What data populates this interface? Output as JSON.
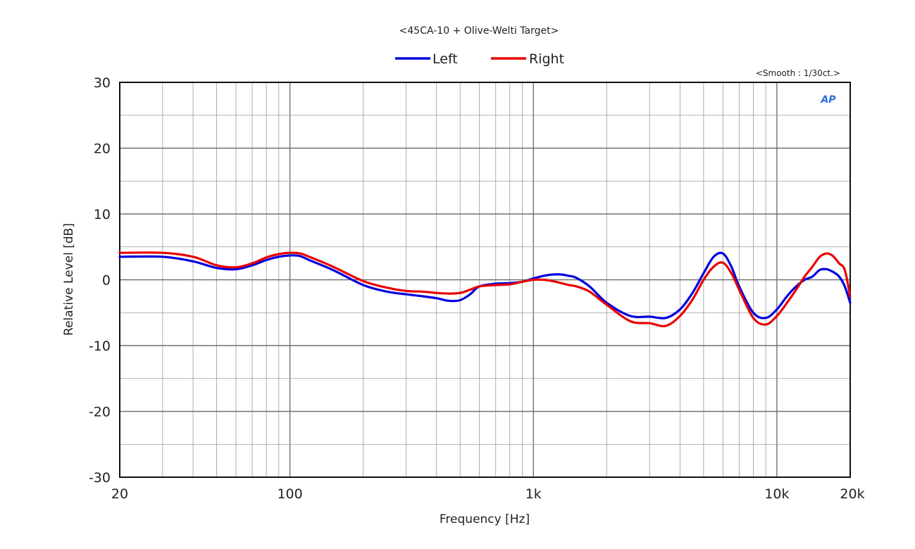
{
  "colors": {
    "left": "#0000e0",
    "right": "#e80000",
    "grid": "#9a9a9a",
    "major_grid": "#707070",
    "logo": "#2b6fd6"
  },
  "chart_data": {
    "type": "line",
    "title": "<45CA-10 + Olive-Welti Target>",
    "xlabel": "Frequency [Hz]",
    "ylabel": "Relative Level [dB]",
    "x_scale": "log",
    "xlim": [
      20,
      20000
    ],
    "ylim": [
      -30,
      30
    ],
    "x_ticks": [
      {
        "value": 20,
        "label": "20"
      },
      {
        "value": 100,
        "label": "100"
      },
      {
        "value": 1000,
        "label": "1k"
      },
      {
        "value": 10000,
        "label": "10k"
      },
      {
        "value": 20000,
        "label": "20k"
      }
    ],
    "y_ticks": [
      {
        "value": 30,
        "label": "30"
      },
      {
        "value": 20,
        "label": "20"
      },
      {
        "value": 10,
        "label": "10"
      },
      {
        "value": 0,
        "label": "0"
      },
      {
        "value": -10,
        "label": "-10"
      },
      {
        "value": -20,
        "label": "-20"
      },
      {
        "value": -30,
        "label": "-30"
      }
    ],
    "grid": true,
    "legend_position": "top-center",
    "annotation": "<Smooth : 1/30ct.>",
    "logo_text": "AP",
    "series": [
      {
        "name": "Left",
        "color": "#0000e0",
        "x": [
          20,
          30,
          40,
          50,
          60,
          70,
          80,
          90,
          100,
          110,
          120,
          150,
          200,
          250,
          300,
          350,
          400,
          450,
          500,
          550,
          600,
          700,
          800,
          900,
          1000,
          1100,
          1200,
          1300,
          1400,
          1500,
          1700,
          2000,
          2500,
          3000,
          3500,
          4000,
          4500,
          5000,
          5500,
          6000,
          6500,
          7000,
          8000,
          9000,
          10000,
          11000,
          12000,
          13000,
          14000,
          15000,
          16000,
          17000,
          18000,
          19000,
          20000
        ],
        "y": [
          3.5,
          3.5,
          2.8,
          1.8,
          1.6,
          2.2,
          3.0,
          3.5,
          3.7,
          3.6,
          3.0,
          1.5,
          -0.8,
          -1.8,
          -2.2,
          -2.5,
          -2.8,
          -3.2,
          -3.1,
          -2.2,
          -1.0,
          -0.6,
          -0.5,
          -0.3,
          0.2,
          0.6,
          0.8,
          0.8,
          0.6,
          0.3,
          -1.0,
          -3.5,
          -5.5,
          -5.6,
          -5.8,
          -4.5,
          -2.0,
          1.0,
          3.5,
          4.0,
          2.0,
          -1.0,
          -5.0,
          -5.8,
          -4.5,
          -2.5,
          -1.0,
          0.0,
          0.5,
          1.5,
          1.6,
          1.2,
          0.5,
          -1.0,
          -3.5
        ]
      },
      {
        "name": "Right",
        "color": "#e80000",
        "x": [
          20,
          30,
          40,
          50,
          60,
          70,
          80,
          90,
          100,
          110,
          120,
          150,
          200,
          250,
          300,
          350,
          400,
          450,
          500,
          550,
          600,
          700,
          800,
          900,
          1000,
          1100,
          1200,
          1300,
          1400,
          1500,
          1700,
          2000,
          2500,
          3000,
          3500,
          4000,
          4500,
          5000,
          5500,
          6000,
          6500,
          7000,
          8000,
          9000,
          10000,
          11000,
          12000,
          13000,
          14000,
          15000,
          16000,
          17000,
          18000,
          19000,
          20000
        ],
        "y": [
          4.1,
          4.1,
          3.5,
          2.2,
          1.9,
          2.5,
          3.4,
          3.9,
          4.1,
          4.0,
          3.5,
          2.0,
          -0.2,
          -1.2,
          -1.7,
          -1.8,
          -2.0,
          -2.1,
          -2.0,
          -1.5,
          -1.0,
          -0.8,
          -0.7,
          -0.3,
          0.0,
          0.0,
          -0.2,
          -0.5,
          -0.8,
          -1.0,
          -1.8,
          -3.8,
          -6.3,
          -6.6,
          -7.0,
          -5.5,
          -3.0,
          0.0,
          2.0,
          2.6,
          1.0,
          -1.5,
          -5.8,
          -6.8,
          -5.5,
          -3.5,
          -1.5,
          0.5,
          2.0,
          3.5,
          4.0,
          3.6,
          2.5,
          1.5,
          -2.5
        ]
      }
    ]
  }
}
